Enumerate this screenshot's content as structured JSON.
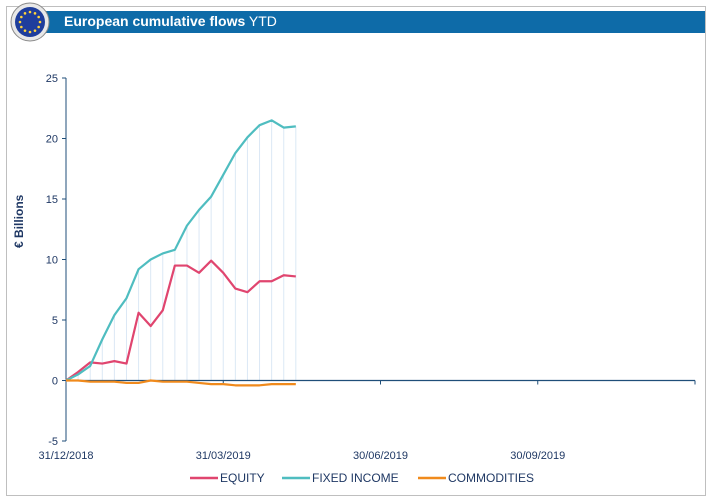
{
  "header": {
    "title_main": "European cumulative flows",
    "title_suffix": "YTD",
    "logo_icon": "eu-flag-icon"
  },
  "colors": {
    "header_bg": "#0e6ba8",
    "axis": "#1f4e79",
    "grid": "#dbe8f5",
    "equity": "#e0456f",
    "fixed_income": "#4fbdc0",
    "commodities": "#f08a1c"
  },
  "chart_data": {
    "type": "line",
    "title": "European cumulative flows YTD",
    "ylabel": "€ Billions",
    "xlabel": "",
    "ylim": [
      -5,
      25
    ],
    "yticks": [
      -5,
      0,
      5,
      10,
      15,
      20,
      25
    ],
    "xlim_weeks": [
      0,
      52
    ],
    "xticks": [
      {
        "label": "31/12/2018",
        "week": 0
      },
      {
        "label": "31/03/2019",
        "week": 13
      },
      {
        "label": "30/06/2019",
        "week": 26
      },
      {
        "label": "30/09/2019",
        "week": 39
      }
    ],
    "legend_position": "bottom",
    "weeks": [
      0,
      1,
      2,
      3,
      4,
      5,
      6,
      7,
      8,
      9,
      10,
      11,
      12,
      13,
      14,
      15,
      16,
      17,
      18,
      19
    ],
    "series": [
      {
        "name": "EQUITY",
        "color": "#e0456f",
        "values": [
          0,
          0.7,
          1.5,
          1.4,
          1.6,
          1.4,
          5.6,
          4.5,
          5.8,
          9.5,
          9.5,
          8.9,
          9.9,
          8.9,
          7.6,
          7.3,
          8.2,
          8.2,
          8.7,
          8.6
        ]
      },
      {
        "name": "FIXED INCOME",
        "color": "#4fbdc0",
        "values": [
          0,
          0.5,
          1.2,
          3.4,
          5.4,
          6.8,
          9.2,
          10.0,
          10.5,
          10.8,
          12.8,
          14.1,
          15.2,
          17.0,
          18.8,
          20.1,
          21.1,
          21.5,
          20.9,
          21.0
        ]
      },
      {
        "name": "COMMODITIES",
        "color": "#f08a1c",
        "values": [
          0,
          0,
          -0.1,
          -0.1,
          -0.1,
          -0.2,
          -0.2,
          0,
          -0.1,
          -0.1,
          -0.1,
          -0.2,
          -0.3,
          -0.3,
          -0.4,
          -0.4,
          -0.4,
          -0.3,
          -0.3,
          -0.3
        ]
      }
    ]
  }
}
